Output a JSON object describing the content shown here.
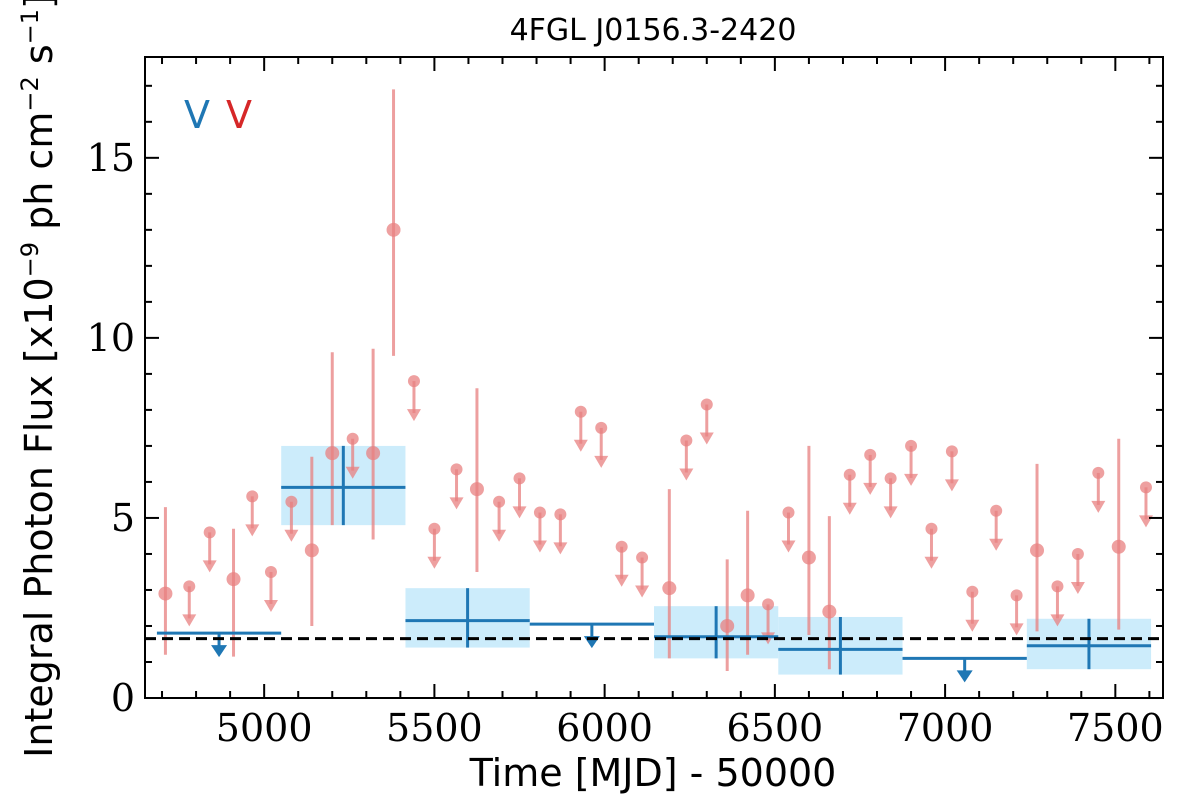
{
  "chart_data": {
    "type": "scatter",
    "title": "4FGL J0156.3-2420",
    "xlabel": "Time [MJD] - 50000",
    "ylabel": "Integral Photon Flux [x10",
    "ylabel_exp": "−9",
    "ylabel_mid": " ph cm",
    "ylabel_exp2": "−2",
    "ylabel_end": " s",
    "ylabel_exp3": "−1",
    "ylabel_close": "]",
    "xlim": [
      4650,
      7640
    ],
    "ylim": [
      0,
      17.8
    ],
    "x_ticks": [
      5000,
      5500,
      6000,
      6500,
      7000,
      7500
    ],
    "y_ticks": [
      0,
      5,
      10,
      15
    ],
    "mean_flux": 1.65,
    "legend": [
      {
        "label": "V",
        "color": "#1f77b4"
      },
      {
        "label": "V",
        "color": "#d62728"
      }
    ],
    "series": [
      {
        "name": "",
        "color": "#e88080",
        "points": [
          {
            "x": 4710,
            "y": 2.9,
            "ylo": 1.2,
            "yhi": 5.3
          },
          {
            "x": 4910,
            "y": 3.3,
            "ylo": 1.15,
            "yhi": 4.7
          },
          {
            "x": 5140,
            "y": 4.1,
            "ylo": 2.0,
            "yhi": 6.7
          },
          {
            "x": 5200,
            "y": 6.8,
            "ylo": 4.8,
            "yhi": 9.6
          },
          {
            "x": 5320,
            "y": 6.8,
            "ylo": 4.4,
            "yhi": 9.7
          },
          {
            "x": 5380,
            "y": 13.0,
            "ylo": 9.5,
            "yhi": 16.9
          },
          {
            "x": 5625,
            "y": 5.8,
            "ylo": 3.5,
            "yhi": 8.6
          },
          {
            "x": 6190,
            "y": 3.05,
            "ylo": 1.1,
            "yhi": 5.8
          },
          {
            "x": 6360,
            "y": 2.0,
            "ylo": 0.75,
            "yhi": 3.85
          },
          {
            "x": 6420,
            "y": 2.85,
            "ylo": 1.2,
            "yhi": 5.2
          },
          {
            "x": 6600,
            "y": 3.9,
            "ylo": 1.75,
            "yhi": 7.0
          },
          {
            "x": 6660,
            "y": 2.4,
            "ylo": 0.8,
            "yhi": 5.05
          },
          {
            "x": 7270,
            "y": 4.1,
            "ylo": 1.85,
            "yhi": 6.5
          },
          {
            "x": 7510,
            "y": 4.2,
            "ylo": 1.9,
            "yhi": 7.2
          }
        ],
        "upper_limits": [
          {
            "x": 4780,
            "y": 3.1
          },
          {
            "x": 4840,
            "y": 4.6
          },
          {
            "x": 4965,
            "y": 5.6
          },
          {
            "x": 5020,
            "y": 3.5
          },
          {
            "x": 5080,
            "y": 5.45
          },
          {
            "x": 5260,
            "y": 7.2
          },
          {
            "x": 5440,
            "y": 8.8
          },
          {
            "x": 5500,
            "y": 4.7
          },
          {
            "x": 5565,
            "y": 6.35
          },
          {
            "x": 5690,
            "y": 5.45
          },
          {
            "x": 5750,
            "y": 6.1
          },
          {
            "x": 5810,
            "y": 5.15
          },
          {
            "x": 5870,
            "y": 5.1
          },
          {
            "x": 5930,
            "y": 7.95
          },
          {
            "x": 5990,
            "y": 7.5
          },
          {
            "x": 6050,
            "y": 4.2
          },
          {
            "x": 6110,
            "y": 3.9
          },
          {
            "x": 6240,
            "y": 7.15
          },
          {
            "x": 6300,
            "y": 8.15
          },
          {
            "x": 6480,
            "y": 2.6
          },
          {
            "x": 6540,
            "y": 5.15
          },
          {
            "x": 6720,
            "y": 6.2
          },
          {
            "x": 6780,
            "y": 6.75
          },
          {
            "x": 6840,
            "y": 6.1
          },
          {
            "x": 6900,
            "y": 7.0
          },
          {
            "x": 6960,
            "y": 4.7
          },
          {
            "x": 7020,
            "y": 6.85
          },
          {
            "x": 7080,
            "y": 2.95
          },
          {
            "x": 7150,
            "y": 5.2
          },
          {
            "x": 7210,
            "y": 2.85
          },
          {
            "x": 7330,
            "y": 3.1
          },
          {
            "x": 7390,
            "y": 4.0
          },
          {
            "x": 7450,
            "y": 6.25
          },
          {
            "x": 7590,
            "y": 5.85
          }
        ]
      },
      {
        "name": "",
        "color": "#1f77b4",
        "box_color": "#ccecfb",
        "bins": [
          {
            "x0": 5050,
            "x1": 5415,
            "y": 5.85,
            "ylo": 4.8,
            "yhi": 7.0
          },
          {
            "x0": 5415,
            "x1": 5780,
            "y": 2.15,
            "ylo": 1.4,
            "yhi": 3.05
          },
          {
            "x0": 6145,
            "x1": 6510,
            "y": 1.7,
            "ylo": 1.1,
            "yhi": 2.55
          },
          {
            "x0": 6510,
            "x1": 6875,
            "y": 1.35,
            "ylo": 0.65,
            "yhi": 2.25
          },
          {
            "x0": 7240,
            "x1": 7605,
            "y": 1.45,
            "ylo": 0.8,
            "yhi": 2.2
          }
        ],
        "upper_limits": [
          {
            "x0": 4685,
            "x1": 5050,
            "y": 1.8
          },
          {
            "x0": 5780,
            "x1": 6145,
            "y": 2.05
          },
          {
            "x0": 6875,
            "x1": 7240,
            "y": 1.1
          }
        ]
      }
    ]
  }
}
